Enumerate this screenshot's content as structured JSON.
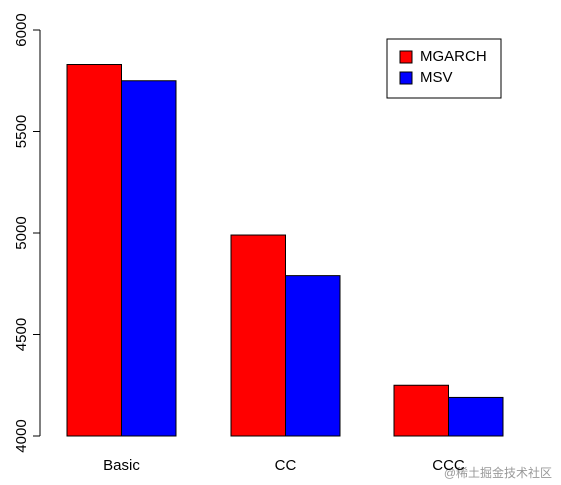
{
  "chart_data": {
    "type": "bar",
    "categories": [
      "Basic",
      "CC",
      "CCC"
    ],
    "series": [
      {
        "name": "MGARCH",
        "color": "#ff0000",
        "values": [
          5830,
          4990,
          4250
        ]
      },
      {
        "name": "MSV",
        "color": "#0000ff",
        "values": [
          5750,
          4790,
          4190
        ]
      }
    ],
    "ylim": [
      4000,
      6000
    ],
    "yticks": [
      4000,
      4500,
      5000,
      5500,
      6000
    ],
    "legend": "top-right",
    "watermark": "@稀土掘金技术社区"
  }
}
